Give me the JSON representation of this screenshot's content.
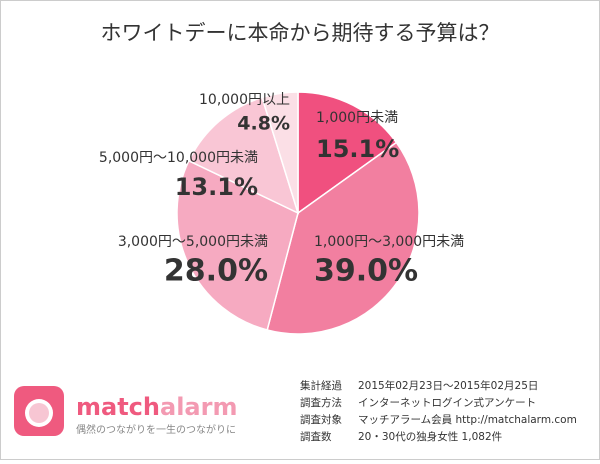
{
  "chart_data": {
    "type": "pie",
    "title": "ホワイトデーに本命から期待する予算は？",
    "categories": [
      "1,000円未満",
      "1,000円～3,000円未満",
      "3,000円～5,000円未満",
      "5,000円～10,000円未満",
      "10,000円以上"
    ],
    "values": [
      15.1,
      39.0,
      28.0,
      13.1,
      4.8
    ],
    "value_labels": [
      "15.1%",
      "39.0%",
      "28.0%",
      "13.1%",
      "4.8%"
    ],
    "colors": [
      "#f0507f",
      "#f27fa0",
      "#f6aac1",
      "#f9c6d5",
      "#fbdfe6"
    ]
  },
  "logo": {
    "name_a": "match",
    "name_b": "alarm",
    "tagline": "偶然のつながりを一生のつながりに"
  },
  "notes": [
    [
      "集計経過",
      "2015年02月23日～2015年02月25日"
    ],
    [
      "調査方法",
      "インターネットログイン式アンケート"
    ],
    [
      "調査対象",
      "マッチアラーム会員 http://matchalarm.com"
    ],
    [
      "調査数",
      "20・30代の独身女性 1,082件"
    ]
  ]
}
